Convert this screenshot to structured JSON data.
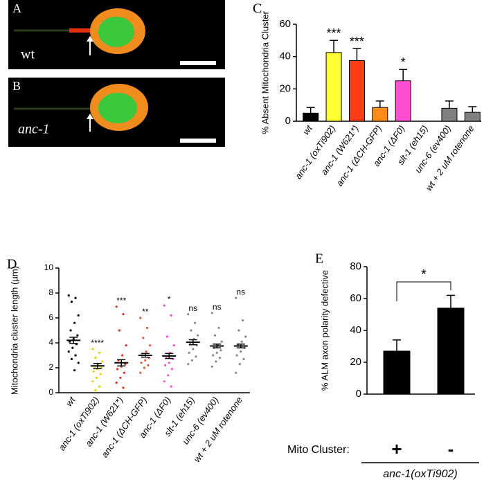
{
  "images": [
    {
      "label": "A",
      "caption": "wt"
    },
    {
      "label": "B",
      "caption": "anc-1"
    }
  ],
  "chart_data": [
    {
      "type": "bar",
      "panel": "C",
      "y_label": "% Absent Mitochondria Cluster",
      "categories": [
        "wt",
        "anc-1 (oxTi902)",
        "anc-1 (W621*)",
        "anc-1 (ΔCH-GFP)",
        "anc-1 (ΔF0)",
        "slt-1 (eh15)",
        "unc-6 (ev400)",
        "wt + 2 uM rotenone"
      ],
      "values": [
        5,
        42.5,
        37.5,
        8.5,
        25,
        0,
        8,
        5.5
      ],
      "errors": [
        3.5,
        7.5,
        7.5,
        4,
        7,
        null,
        4.5,
        3.5
      ],
      "colors": [
        "#000000",
        "#ffff33",
        "#ff3c1a",
        "#ff8c1a",
        "#ff4dd2",
        "#808080",
        "#808080",
        "#808080"
      ],
      "annotations": [
        null,
        "***",
        "***",
        null,
        "*",
        null,
        null,
        null
      ],
      "ylim": [
        0,
        60
      ],
      "yticks": [
        0,
        20,
        40,
        60
      ]
    },
    {
      "type": "dot",
      "panel": "D",
      "y_label": "Mitochondria cluster length (µm)",
      "categories": [
        "wt",
        "anc-1 (oxTi902)",
        "anc-1 (W621*)",
        "anc-1 (ΔCH-GFP)",
        "anc-1 (ΔF0)",
        "slt-1 (eh15)",
        "unc-6 (ev400)",
        "wt + 2 uM rotenone"
      ],
      "points": [
        [
          7.8,
          7.6,
          7.3,
          6.2,
          5.6,
          5.0,
          4.6,
          4.3,
          4.1,
          3.9,
          3.6,
          3.3,
          3.0,
          2.7,
          2.4,
          1.8
        ],
        [
          3.5,
          3.2,
          2.8,
          2.5,
          2.3,
          2.1,
          2.0,
          1.9,
          1.7,
          1.5,
          1.2,
          0.9,
          0.5,
          0.2
        ],
        [
          6.9,
          6.3,
          5.0,
          3.8,
          3.0,
          2.6,
          2.3,
          2.1,
          1.9,
          1.6,
          1.2,
          0.8,
          0.4
        ],
        [
          6.0,
          5.2,
          4.4,
          3.8,
          3.3,
          3.0,
          2.8,
          2.6,
          2.4,
          2.2,
          2.0,
          1.6
        ],
        [
          7.0,
          6.2,
          4.5,
          3.8,
          3.2,
          2.9,
          2.7,
          2.4,
          2.2,
          1.9,
          1.4,
          0.9,
          0.5
        ],
        [
          6.3,
          5.6,
          5.0,
          4.6,
          4.3,
          4.0,
          3.8,
          3.5,
          3.2,
          2.9,
          2.6,
          2.3
        ],
        [
          6.4,
          5.2,
          4.6,
          4.1,
          3.8,
          3.6,
          3.4,
          3.2,
          3.0,
          2.8,
          2.5,
          2.1
        ],
        [
          7.6,
          5.8,
          5.0,
          4.5,
          4.1,
          3.8,
          3.6,
          3.3,
          3.0,
          2.7,
          2.3,
          1.6
        ]
      ],
      "means": [
        4.2,
        2.15,
        2.4,
        3.0,
        2.95,
        4.05,
        3.75,
        3.75
      ],
      "sems": [
        0.25,
        0.2,
        0.25,
        0.15,
        0.2,
        0.2,
        0.15,
        0.15
      ],
      "colors": [
        "#000000",
        "#e6d200",
        "#e0301e",
        "#e8553a",
        "#ff4dd2",
        "#888888",
        "#888888",
        "#888888"
      ],
      "annotations": [
        null,
        "****",
        "***",
        "**",
        "*",
        "ns",
        "ns",
        "ns"
      ],
      "ylim": [
        0,
        10
      ],
      "yticks": [
        0,
        2,
        4,
        6,
        8,
        10
      ]
    },
    {
      "type": "bar",
      "panel": "E",
      "y_label": "% ALM axon polarity defective",
      "categories": [
        "+",
        "-"
      ],
      "category_title": "Mito Cluster:",
      "group_label": "anc-1(oxTi902)",
      "values": [
        27,
        54
      ],
      "errors": [
        7,
        8
      ],
      "colors": [
        "#000000",
        "#000000"
      ],
      "significance": "*",
      "ylim": [
        0,
        80
      ],
      "yticks": [
        0,
        20,
        40,
        60,
        80
      ]
    }
  ]
}
